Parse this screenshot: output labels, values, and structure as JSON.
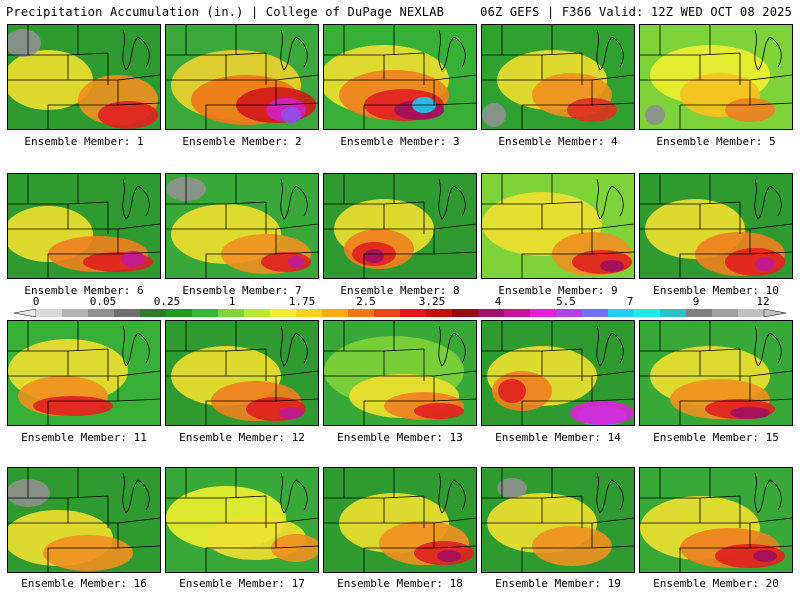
{
  "header": {
    "title": "Precipitation Accumulation (in.) | College of DuPage NEXLAB",
    "run_info": "06Z GEFS | F366 Valid: 12Z WED OCT 08 2025"
  },
  "colorbar": {
    "labels": [
      "0",
      "0.05",
      "0.25",
      "1",
      "1.75",
      "2.5",
      "3.25",
      "4",
      "5.5",
      "7",
      "9",
      "12"
    ],
    "colors": [
      "#d8d8d8",
      "#b4b4b4",
      "#909090",
      "#6e6e6e",
      "#2f7a2f",
      "#1f9a1f",
      "#38b838",
      "#7ed23a",
      "#b8e63a",
      "#f0f030",
      "#f8d020",
      "#f8a818",
      "#f07818",
      "#e84818",
      "#e01818",
      "#c01010",
      "#980a18",
      "#a01060",
      "#c01898",
      "#e020d8",
      "#b040e8",
      "#7070f0",
      "#20d0f0",
      "#20e8e8",
      "#30c0c0",
      "#808080",
      "#a0a0a0",
      "#c0c0c0"
    ]
  },
  "panels": [
    {
      "label": "Ensemble Member: 1"
    },
    {
      "label": "Ensemble Member: 2"
    },
    {
      "label": "Ensemble Member: 3"
    },
    {
      "label": "Ensemble Member: 4"
    },
    {
      "label": "Ensemble Member: 5"
    },
    {
      "label": "Ensemble Member: 6"
    },
    {
      "label": "Ensemble Member: 7"
    },
    {
      "label": "Ensemble Member: 8"
    },
    {
      "label": "Ensemble Member: 9"
    },
    {
      "label": "Ensemble Member: 10"
    },
    {
      "label": "Ensemble Member: 11"
    },
    {
      "label": "Ensemble Member: 12"
    },
    {
      "label": "Ensemble Member: 13"
    },
    {
      "label": "Ensemble Member: 14"
    },
    {
      "label": "Ensemble Member: 15"
    },
    {
      "label": "Ensemble Member: 16"
    },
    {
      "label": "Ensemble Member: 17"
    },
    {
      "label": "Ensemble Member: 18"
    },
    {
      "label": "Ensemble Member: 19"
    },
    {
      "label": "Ensemble Member: 20"
    }
  ]
}
